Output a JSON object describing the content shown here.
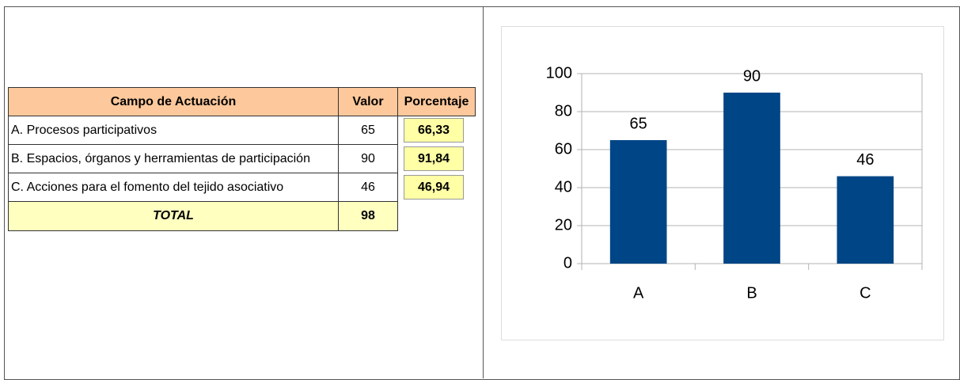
{
  "table": {
    "header": [
      "Campo de Actuación",
      "Valor",
      "Porcentaje"
    ],
    "rows": [
      [
        "A. Procesos participativos",
        65,
        "66,33"
      ],
      [
        "B. Espacios, órganos y herramientas de participación",
        90,
        "91,84"
      ],
      [
        "C. Acciones para el fomento del tejido asociativo",
        46,
        "46,94"
      ]
    ],
    "total": [
      "TOTAL",
      98
    ]
  },
  "chart_data": {
    "type": "bar",
    "categories": [
      "A",
      "B",
      "C"
    ],
    "values": [
      65,
      90,
      46
    ],
    "color": "#004586",
    "ylim": [
      0,
      100
    ],
    "yticks": [
      0,
      20,
      40,
      60,
      80,
      100
    ],
    "grid": true
  }
}
